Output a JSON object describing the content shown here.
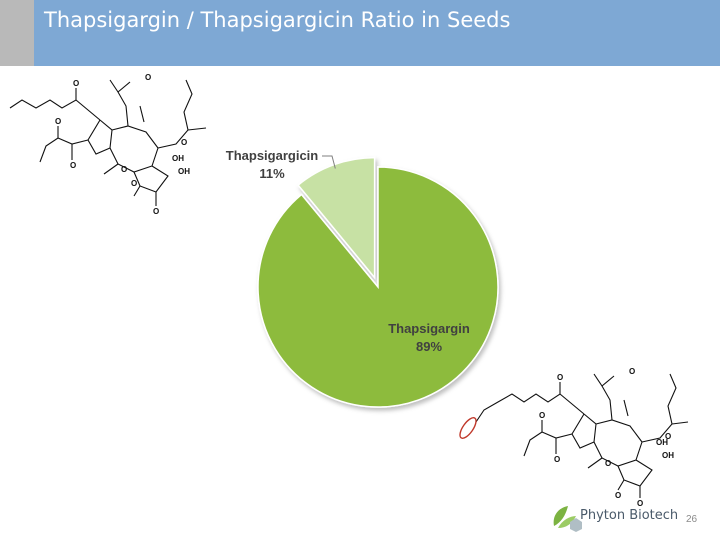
{
  "slide": {
    "title": "Thapsigargin / Thapsigargicin Ratio in Seeds",
    "page_number": "26",
    "logo_text": "Phyton Biotech"
  },
  "colors": {
    "title_bar": "#7ea8d4",
    "title_accent": "#b9b9b9",
    "thapsigargin": "#8dbb3e",
    "thapsigargicin": "#c7e1a4",
    "highlight_ring": "#c0392b"
  },
  "molecules": {
    "first": {
      "labels": [
        "O",
        "O",
        "O",
        "O",
        "O",
        "O",
        "O",
        "O",
        "OH",
        "OH"
      ]
    },
    "second": {
      "labels": [
        "O",
        "O",
        "O",
        "O",
        "O",
        "O",
        "O",
        "O",
        "OH",
        "OH"
      ]
    }
  },
  "chart_data": {
    "type": "pie",
    "title": "",
    "slices": [
      {
        "name": "Thapsigargicin",
        "value": 11,
        "label": "11%",
        "color": "#c7e1a4"
      },
      {
        "name": "Thapsigargin",
        "value": 89,
        "label": "89%",
        "color": "#8dbb3e"
      }
    ],
    "legend": "none"
  }
}
